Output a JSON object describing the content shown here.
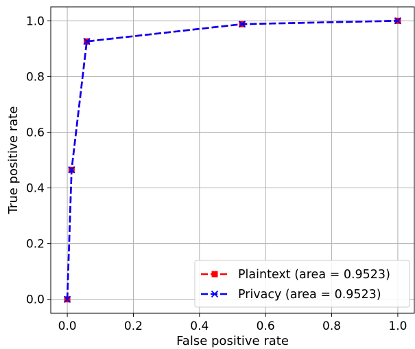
{
  "chart_data": {
    "type": "line",
    "title": "",
    "xlabel": "False positive rate",
    "ylabel": "True positive rate",
    "xlim": [
      -0.05,
      1.05
    ],
    "ylim": [
      -0.05,
      1.05
    ],
    "xticks": [
      0.0,
      0.2,
      0.4,
      0.6,
      0.8,
      1.0
    ],
    "yticks": [
      0.0,
      0.2,
      0.4,
      0.6,
      0.8,
      1.0
    ],
    "xtick_labels": [
      "0.0",
      "0.2",
      "0.4",
      "0.6",
      "0.8",
      "1.0"
    ],
    "ytick_labels": [
      "0.0",
      "0.2",
      "0.4",
      "0.6",
      "0.8",
      "1.0"
    ],
    "grid": true,
    "legend_position": "bottom-right",
    "series": [
      {
        "name": "Plaintext (area = 0.9523)",
        "color": "#ff0000",
        "marker": "square",
        "linestyle": "dashed",
        "x": [
          0.0,
          0.013,
          0.059,
          0.529,
          1.0
        ],
        "y": [
          0.0,
          0.465,
          0.926,
          0.988,
          1.0
        ]
      },
      {
        "name": "Privacy (area = 0.9523)",
        "color": "#0000ff",
        "marker": "x",
        "linestyle": "dashed",
        "x": [
          0.0,
          0.013,
          0.059,
          0.529,
          1.0
        ],
        "y": [
          0.0,
          0.465,
          0.926,
          0.988,
          1.0
        ]
      }
    ]
  }
}
